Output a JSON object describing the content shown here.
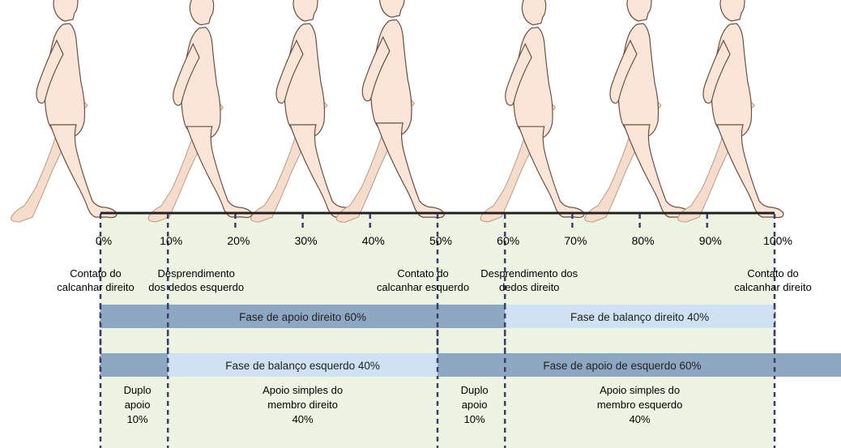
{
  "colors": {
    "background_tint": "#eef4e2",
    "support_bar": "#8ea7c3",
    "swing_bar": "#cfe2f3",
    "figure_fill": "#fbe5d6",
    "figure_back": "#f6ddcb",
    "figure_stroke": "#6b5042",
    "ground": "#222222",
    "dashed_line": "#3a3f6b"
  },
  "figure_icons": [
    "walking-figure-icon",
    "walking-figure-icon",
    "walking-figure-icon",
    "walking-figure-icon",
    "walking-figure-icon",
    "walking-figure-icon",
    "walking-figure-icon"
  ],
  "percent_ticks": [
    {
      "value": 0,
      "label": "0%"
    },
    {
      "value": 10,
      "label": "10%"
    },
    {
      "value": 20,
      "label": "20%"
    },
    {
      "value": 30,
      "label": "30%"
    },
    {
      "value": 40,
      "label": "40%"
    },
    {
      "value": 50,
      "label": "50%"
    },
    {
      "value": 60,
      "label": "60%"
    },
    {
      "value": 70,
      "label": "70%"
    },
    {
      "value": 80,
      "label": "80%"
    },
    {
      "value": 90,
      "label": "90%"
    },
    {
      "value": 100,
      "label": "100%"
    }
  ],
  "events": [
    {
      "at": 0,
      "lines": [
        "Contato do",
        "calcanhar direito"
      ]
    },
    {
      "at": 10,
      "lines": [
        "Desprendimento",
        "dos dedos esquerdo"
      ]
    },
    {
      "at": 50,
      "lines": [
        "Contato do",
        "calcanhar esquerdo"
      ]
    },
    {
      "at": 60,
      "lines": [
        "Desprendimento dos",
        "dedos direito"
      ]
    },
    {
      "at": 100,
      "lines": [
        "Contato do",
        "calcanhar direito"
      ]
    }
  ],
  "phase_rows": [
    [
      {
        "from": 0,
        "to": 60,
        "kind": "support",
        "label": "Fase de apoio direito 60%"
      },
      {
        "from": 60,
        "to": 100,
        "kind": "swing",
        "label": "Fase de balanço direito 40%"
      }
    ],
    [
      {
        "from": 0,
        "to": 10,
        "kind": "support",
        "label": ""
      },
      {
        "from": 10,
        "to": 50,
        "kind": "swing",
        "label": "Fase de balanço esquerdo 40%"
      },
      {
        "from": 50,
        "to": 110,
        "kind": "support",
        "label": "Fase de apoio de esquerdo 60%"
      }
    ]
  ],
  "support_captions": [
    {
      "from": 0,
      "to": 10,
      "lines": [
        "Duplo",
        "apoio",
        "10%"
      ]
    },
    {
      "from": 10,
      "to": 50,
      "lines": [
        "Apoio simples do",
        "membro direito",
        "40%"
      ]
    },
    {
      "from": 50,
      "to": 60,
      "lines": [
        "Duplo",
        "apoio",
        "10%"
      ]
    },
    {
      "from": 60,
      "to": 100,
      "lines": [
        "Apoio simples do",
        "membro esquerdo",
        "40%"
      ]
    }
  ]
}
